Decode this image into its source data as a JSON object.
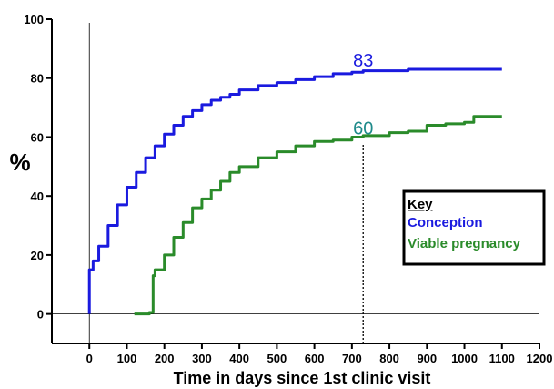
{
  "chart_data": {
    "type": "line",
    "xlabel": "Time in days since 1st clinic visit",
    "ylabel": "%",
    "xlim": [
      -100,
      1200
    ],
    "ylim": [
      -10,
      100
    ],
    "x_ticks": [
      0,
      100,
      200,
      300,
      400,
      500,
      600,
      700,
      800,
      900,
      1000,
      1100,
      1200
    ],
    "y_ticks": [
      0,
      20,
      40,
      60,
      80,
      100
    ],
    "reference_lines": {
      "vertical_solid_x": 0,
      "vertical_dotted_x": 730,
      "horizontal_y": 0
    },
    "legend": {
      "title": "Key",
      "placement": "right",
      "entries": [
        "Conception",
        "Viable pregnancy"
      ]
    },
    "series": [
      {
        "name": "Conception",
        "color": "#1a1adf",
        "x": [
          0,
          0,
          10,
          25,
          50,
          75,
          100,
          125,
          150,
          175,
          200,
          225,
          250,
          275,
          300,
          325,
          350,
          375,
          400,
          450,
          500,
          550,
          600,
          650,
          700,
          730,
          780,
          850,
          900,
          1000,
          1100
        ],
        "y": [
          0,
          15,
          18,
          23,
          30,
          37,
          43,
          48,
          53,
          57,
          61,
          64,
          67,
          69,
          71,
          72.5,
          73.5,
          74.5,
          76,
          77.5,
          78.5,
          79.5,
          80.5,
          81.5,
          82,
          82.5,
          82.5,
          83,
          83,
          83,
          83
        ]
      },
      {
        "name": "Viable pregnancy",
        "color": "#2a8b2a",
        "x": [
          120,
          160,
          170,
          170,
          175,
          200,
          225,
          250,
          275,
          300,
          325,
          350,
          375,
          400,
          450,
          500,
          550,
          600,
          650,
          700,
          730,
          800,
          850,
          900,
          950,
          1000,
          1025,
          1050,
          1100
        ],
        "y": [
          0,
          0.5,
          1,
          13,
          15,
          20,
          26,
          31,
          36,
          39,
          42,
          45,
          48,
          50,
          53,
          55,
          57,
          58.5,
          59,
          60,
          60.5,
          61.5,
          62,
          64,
          64.5,
          65,
          67,
          67,
          67
        ]
      }
    ],
    "annotations": [
      {
        "text": "83",
        "x": 730,
        "y": 83,
        "series": 0
      },
      {
        "text": "60",
        "x": 730,
        "y": 60,
        "series": 1
      }
    ]
  }
}
